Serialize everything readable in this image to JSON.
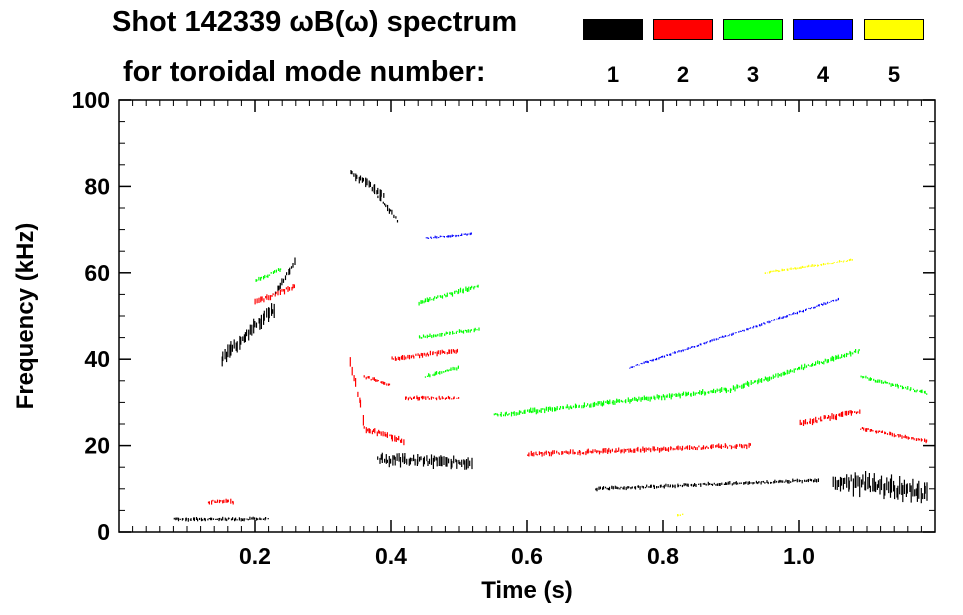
{
  "title_line1": "Shot 142339 ωB(ω) spectrum",
  "title_line2": "for toroidal mode number:",
  "legend": [
    {
      "label": "1",
      "color": "#000000"
    },
    {
      "label": "2",
      "color": "#ff0000"
    },
    {
      "label": "3",
      "color": "#00ff00"
    },
    {
      "label": "4",
      "color": "#0000ff"
    },
    {
      "label": "5",
      "color": "#ffff00"
    }
  ],
  "chart_data": {
    "type": "heatmap",
    "title": "Shot 142339 ωB(ω) spectrum",
    "xlabel": "Time (s)",
    "ylabel": "Frequency (kHz)",
    "xlim": [
      0.0,
      1.2
    ],
    "ylim": [
      0,
      100
    ],
    "xticks": [
      0.2,
      0.4,
      0.6,
      0.8,
      1.0
    ],
    "xtick_labels": [
      "0.2",
      "0.4",
      "0.6",
      "0.8",
      "1.0"
    ],
    "yticks": [
      0,
      20,
      40,
      60,
      80,
      100
    ],
    "ytick_labels": [
      "0",
      "20",
      "40",
      "60",
      "80",
      "100"
    ],
    "legend_title": "for toroidal mode number:",
    "series": [
      {
        "name": "1",
        "color": "#000000",
        "segments": [
          {
            "t0": 0.15,
            "t1": 0.23,
            "f0": 40,
            "f1": 52,
            "w": 12
          },
          {
            "t0": 0.23,
            "t1": 0.26,
            "f0": 55,
            "f1": 63,
            "w": 6
          },
          {
            "t0": 0.34,
            "t1": 0.39,
            "f0": 83,
            "f1": 78,
            "w": 8
          },
          {
            "t0": 0.38,
            "t1": 0.41,
            "f0": 78,
            "f1": 72,
            "w": 5
          },
          {
            "t0": 0.38,
            "t1": 0.52,
            "f0": 17,
            "f1": 16,
            "w": 9
          },
          {
            "t0": 0.7,
            "t1": 1.03,
            "f0": 10,
            "f1": 12,
            "w": 3
          },
          {
            "t0": 1.05,
            "t1": 1.19,
            "f0": 12,
            "f1": 9,
            "w": 16
          },
          {
            "t0": 0.08,
            "t1": 0.22,
            "f0": 3,
            "f1": 3,
            "w": 3
          }
        ]
      },
      {
        "name": "2",
        "color": "#ff0000",
        "segments": [
          {
            "t0": 0.2,
            "t1": 0.26,
            "f0": 53,
            "f1": 57,
            "w": 5
          },
          {
            "t0": 0.34,
            "t1": 0.36,
            "f0": 40,
            "f1": 26,
            "w": 10
          },
          {
            "t0": 0.36,
            "t1": 0.42,
            "f0": 24,
            "f1": 21,
            "w": 5
          },
          {
            "t0": 0.36,
            "t1": 0.4,
            "f0": 36,
            "f1": 34,
            "w": 3
          },
          {
            "t0": 0.4,
            "t1": 0.5,
            "f0": 40,
            "f1": 42,
            "w": 4
          },
          {
            "t0": 0.42,
            "t1": 0.5,
            "f0": 31,
            "f1": 31,
            "w": 3
          },
          {
            "t0": 0.6,
            "t1": 0.93,
            "f0": 18,
            "f1": 20,
            "w": 4
          },
          {
            "t0": 1.0,
            "t1": 1.09,
            "f0": 25,
            "f1": 28,
            "w": 5
          },
          {
            "t0": 1.09,
            "t1": 1.19,
            "f0": 24,
            "f1": 21,
            "w": 3
          },
          {
            "t0": 0.13,
            "t1": 0.17,
            "f0": 7,
            "f1": 7,
            "w": 4
          }
        ]
      },
      {
        "name": "3",
        "color": "#00ff00",
        "segments": [
          {
            "t0": 0.2,
            "t1": 0.24,
            "f0": 58,
            "f1": 61,
            "w": 3
          },
          {
            "t0": 0.44,
            "t1": 0.53,
            "f0": 53,
            "f1": 57,
            "w": 4
          },
          {
            "t0": 0.44,
            "t1": 0.53,
            "f0": 45,
            "f1": 47,
            "w": 3
          },
          {
            "t0": 0.45,
            "t1": 0.5,
            "f0": 36,
            "f1": 38,
            "w": 3
          },
          {
            "t0": 0.55,
            "t1": 0.9,
            "f0": 27,
            "f1": 33,
            "w": 4
          },
          {
            "t0": 0.9,
            "t1": 1.09,
            "f0": 33,
            "f1": 42,
            "w": 4
          },
          {
            "t0": 1.09,
            "t1": 1.19,
            "f0": 36,
            "f1": 32,
            "w": 3
          }
        ]
      },
      {
        "name": "4",
        "color": "#0000ff",
        "segments": [
          {
            "t0": 0.45,
            "t1": 0.52,
            "f0": 68,
            "f1": 69,
            "w": 2
          },
          {
            "t0": 0.75,
            "t1": 1.06,
            "f0": 38,
            "f1": 54,
            "w": 2
          }
        ]
      },
      {
        "name": "5",
        "color": "#ffff00",
        "segments": [
          {
            "t0": 0.95,
            "t1": 1.08,
            "f0": 60,
            "f1": 63,
            "w": 2
          },
          {
            "t0": 0.82,
            "t1": 0.83,
            "f0": 4,
            "f1": 4,
            "w": 2
          }
        ]
      }
    ]
  }
}
